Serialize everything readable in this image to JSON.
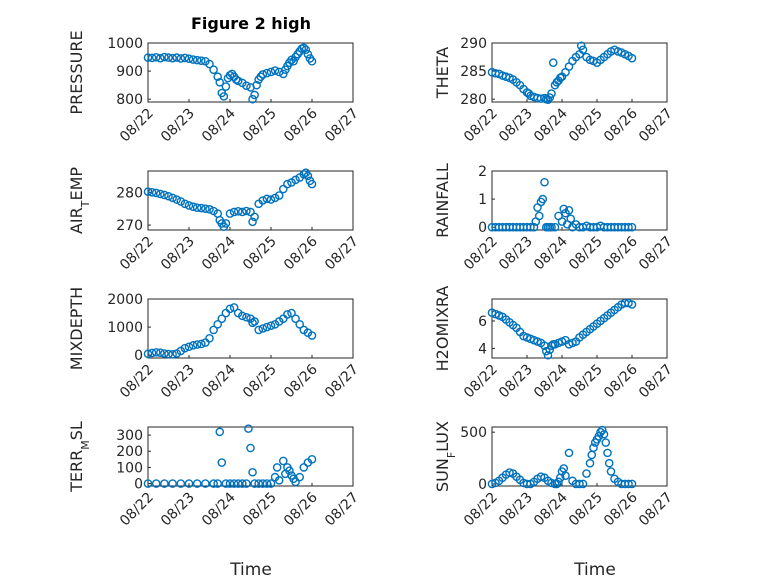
{
  "figure": {
    "title": "Figure 2 high",
    "xlabel": "Time",
    "marker_color": "#0072BD",
    "x_tick_labels": [
      "08/22",
      "08/23",
      "08/24",
      "08/25",
      "08/26",
      "08/27"
    ]
  },
  "chart_data": [
    {
      "type": "scatter",
      "ylabel": "PRESSURE",
      "ylim": [
        790,
        1000
      ],
      "yticks": [
        800,
        900,
        1000
      ],
      "grid": "on",
      "x": [
        0,
        0.1,
        0.2,
        0.3,
        0.4,
        0.5,
        0.6,
        0.7,
        0.8,
        0.9,
        1.0,
        1.1,
        1.2,
        1.3,
        1.4,
        1.5,
        1.6,
        1.7,
        1.75,
        1.8,
        1.85,
        1.9,
        1.95,
        2.0,
        2.05,
        2.1,
        2.15,
        2.2,
        2.3,
        2.4,
        2.5,
        2.55,
        2.6,
        2.65,
        2.7,
        2.75,
        2.8,
        2.9,
        3.0,
        3.1,
        3.2,
        3.3,
        3.35,
        3.4,
        3.45,
        3.5,
        3.55,
        3.6,
        3.65,
        3.7,
        3.75,
        3.8,
        3.85,
        3.9,
        3.95,
        4.0
      ],
      "y": [
        948,
        947,
        949,
        946,
        950,
        948,
        946,
        948,
        945,
        947,
        944,
        941,
        939,
        937,
        935,
        925,
        905,
        880,
        860,
        822,
        810,
        845,
        875,
        885,
        890,
        880,
        870,
        865,
        858,
        848,
        842,
        800,
        815,
        850,
        870,
        880,
        888,
        893,
        897,
        902,
        897,
        890,
        905,
        918,
        930,
        940,
        935,
        950,
        960,
        970,
        980,
        983,
        976,
        960,
        945,
        935
      ]
    },
    {
      "type": "scatter",
      "ylabel": "THETA",
      "ylim": [
        279.5,
        290
      ],
      "yticks": [
        280,
        285,
        290
      ],
      "grid": "on",
      "x": [
        0,
        0.1,
        0.2,
        0.3,
        0.4,
        0.5,
        0.6,
        0.7,
        0.8,
        0.9,
        1.0,
        1.05,
        1.1,
        1.2,
        1.3,
        1.4,
        1.5,
        1.55,
        1.6,
        1.65,
        1.7,
        1.75,
        1.8,
        1.85,
        1.9,
        1.95,
        2.0,
        2.1,
        2.2,
        2.3,
        2.4,
        2.5,
        2.55,
        2.6,
        2.7,
        2.8,
        2.9,
        3.0,
        3.1,
        3.2,
        3.3,
        3.4,
        3.5,
        3.6,
        3.7,
        3.8,
        3.9,
        4.0
      ],
      "y": [
        284.8,
        284.6,
        284.5,
        284.2,
        284.0,
        283.8,
        283.5,
        283.0,
        282.5,
        281.8,
        281.2,
        281.0,
        280.6,
        280.4,
        280.2,
        280.1,
        280.2,
        280.0,
        279.9,
        280.3,
        281.0,
        286.5,
        282.5,
        283.0,
        283.3,
        283.8,
        284.0,
        284.8,
        285.8,
        286.8,
        287.5,
        288.0,
        289.5,
        288.8,
        287.5,
        287.0,
        286.8,
        286.5,
        287.0,
        287.5,
        288.0,
        288.5,
        288.8,
        288.5,
        288.3,
        288.0,
        287.7,
        287.3
      ]
    },
    {
      "type": "scatter",
      "ylabel": "AIR_TEMP",
      "ylim": [
        268.5,
        286.5
      ],
      "yticks": [
        270,
        280
      ],
      "grid": "on",
      "x": [
        0,
        0.1,
        0.2,
        0.3,
        0.4,
        0.5,
        0.6,
        0.7,
        0.8,
        0.9,
        1.0,
        1.1,
        1.2,
        1.3,
        1.4,
        1.5,
        1.6,
        1.7,
        1.75,
        1.8,
        1.85,
        1.9,
        2.0,
        2.1,
        2.2,
        2.3,
        2.4,
        2.5,
        2.55,
        2.6,
        2.7,
        2.8,
        2.9,
        3.0,
        3.1,
        3.2,
        3.3,
        3.4,
        3.5,
        3.6,
        3.7,
        3.8,
        3.85,
        3.9,
        3.95,
        4.0
      ],
      "y": [
        280.2,
        280.0,
        279.8,
        279.5,
        279.2,
        278.8,
        278.3,
        277.8,
        277.2,
        276.5,
        276.0,
        275.6,
        275.3,
        275.2,
        275.0,
        274.8,
        274.3,
        273.5,
        271.5,
        270.5,
        269.5,
        270.5,
        273.5,
        274.0,
        274.2,
        274.0,
        274.3,
        274.0,
        271.0,
        272.5,
        276.5,
        277.5,
        278.0,
        277.8,
        278.3,
        279.0,
        281.0,
        282.5,
        283.0,
        283.8,
        284.5,
        285.5,
        286.0,
        285.0,
        283.5,
        282.5
      ]
    },
    {
      "type": "scatter",
      "ylabel": "RAINFALL",
      "ylim": [
        -0.1,
        2
      ],
      "yticks": [
        0,
        1,
        2
      ],
      "grid": "on",
      "x": [
        0,
        0.1,
        0.2,
        0.3,
        0.4,
        0.5,
        0.6,
        0.7,
        0.8,
        0.9,
        1.0,
        1.1,
        1.2,
        1.25,
        1.3,
        1.35,
        1.4,
        1.45,
        1.5,
        1.55,
        1.6,
        1.65,
        1.7,
        1.8,
        1.9,
        2.0,
        2.05,
        2.1,
        2.15,
        2.2,
        2.25,
        2.3,
        2.4,
        2.5,
        2.6,
        2.7,
        2.8,
        2.9,
        3.0,
        3.1,
        3.2,
        3.3,
        3.4,
        3.5,
        3.6,
        3.7,
        3.8,
        3.9,
        4.0
      ],
      "y": [
        0,
        0,
        0,
        0,
        0,
        0,
        0,
        0,
        0,
        0,
        0,
        0,
        0,
        0.2,
        0.7,
        0.4,
        0.9,
        1.0,
        1.6,
        0,
        0,
        0,
        0,
        0,
        0.4,
        0.2,
        0.65,
        0.5,
        0.1,
        0.6,
        0.3,
        0,
        0.1,
        0,
        0,
        0.05,
        0,
        0,
        0,
        0.05,
        0,
        0,
        0,
        0,
        0,
        0,
        0,
        0,
        0
      ]
    },
    {
      "type": "scatter",
      "ylabel": "MIXDEPTH",
      "ylim": [
        -100,
        2000
      ],
      "yticks": [
        0,
        1000,
        2000
      ],
      "grid": "on",
      "x": [
        0,
        0.1,
        0.2,
        0.3,
        0.4,
        0.5,
        0.6,
        0.7,
        0.8,
        0.9,
        1.0,
        1.1,
        1.2,
        1.3,
        1.4,
        1.5,
        1.6,
        1.7,
        1.8,
        1.9,
        2.0,
        2.1,
        2.2,
        2.3,
        2.4,
        2.5,
        2.55,
        2.6,
        2.7,
        2.8,
        2.9,
        3.0,
        3.1,
        3.2,
        3.3,
        3.4,
        3.5,
        3.6,
        3.7,
        3.8,
        3.9,
        4.0
      ],
      "y": [
        50,
        80,
        100,
        90,
        60,
        40,
        30,
        60,
        150,
        250,
        300,
        350,
        380,
        400,
        450,
        600,
        900,
        1100,
        1300,
        1500,
        1650,
        1700,
        1500,
        1400,
        1350,
        1300,
        1150,
        1200,
        900,
        950,
        1000,
        1050,
        1100,
        1200,
        1300,
        1450,
        1500,
        1300,
        1100,
        900,
        800,
        700
      ]
    },
    {
      "type": "scatter",
      "ylabel": "H2OMIXRA",
      "ylim": [
        3.3,
        7.6
      ],
      "yticks": [
        4,
        6
      ],
      "grid": "on",
      "x": [
        0,
        0.1,
        0.2,
        0.3,
        0.4,
        0.5,
        0.6,
        0.7,
        0.8,
        0.9,
        1.0,
        1.1,
        1.2,
        1.3,
        1.4,
        1.5,
        1.55,
        1.6,
        1.65,
        1.7,
        1.75,
        1.8,
        1.9,
        2.0,
        2.1,
        2.2,
        2.3,
        2.4,
        2.5,
        2.6,
        2.7,
        2.8,
        2.9,
        3.0,
        3.1,
        3.2,
        3.3,
        3.4,
        3.5,
        3.6,
        3.7,
        3.8,
        3.9,
        4.0
      ],
      "y": [
        6.6,
        6.5,
        6.4,
        6.3,
        6.1,
        5.9,
        5.7,
        5.5,
        5.2,
        4.9,
        4.8,
        4.7,
        4.6,
        4.5,
        4.4,
        4.2,
        3.8,
        3.5,
        3.9,
        4.2,
        4.3,
        4.3,
        4.4,
        4.5,
        4.6,
        4.3,
        4.4,
        4.5,
        4.8,
        5.0,
        5.2,
        5.4,
        5.6,
        5.8,
        6.0,
        6.2,
        6.4,
        6.6,
        6.8,
        7.0,
        7.2,
        7.3,
        7.3,
        7.2
      ]
    },
    {
      "type": "scatter",
      "ylabel": "TERR_MSL",
      "ylim": [
        -15,
        350
      ],
      "yticks": [
        0,
        100,
        200,
        300
      ],
      "grid": "on",
      "x": [
        0,
        0.2,
        0.4,
        0.6,
        0.8,
        1.0,
        1.2,
        1.4,
        1.6,
        1.7,
        1.75,
        1.8,
        1.9,
        2.0,
        2.1,
        2.2,
        2.3,
        2.4,
        2.45,
        2.5,
        2.55,
        2.6,
        2.7,
        2.8,
        2.9,
        3.0,
        3.1,
        3.15,
        3.2,
        3.3,
        3.35,
        3.4,
        3.45,
        3.5,
        3.55,
        3.6,
        3.7,
        3.8,
        3.9,
        4.0
      ],
      "y": [
        0,
        0,
        0,
        0,
        0,
        0,
        0,
        0,
        0,
        0,
        320,
        130,
        0,
        0,
        0,
        0,
        0,
        0,
        340,
        220,
        70,
        0,
        0,
        0,
        0,
        0,
        40,
        100,
        20,
        140,
        60,
        100,
        80,
        50,
        30,
        10,
        40,
        100,
        130,
        150
      ]
    },
    {
      "type": "scatter",
      "ylabel": "SUN_FLUX",
      "ylim": [
        -20,
        550
      ],
      "yticks": [
        0,
        500
      ],
      "grid": "on",
      "x": [
        0,
        0.1,
        0.2,
        0.3,
        0.4,
        0.5,
        0.6,
        0.7,
        0.8,
        0.9,
        1.0,
        1.1,
        1.2,
        1.3,
        1.4,
        1.5,
        1.6,
        1.7,
        1.8,
        1.85,
        1.9,
        1.95,
        2.0,
        2.05,
        2.1,
        2.2,
        2.3,
        2.4,
        2.5,
        2.6,
        2.7,
        2.8,
        2.85,
        2.9,
        2.95,
        3.0,
        3.05,
        3.1,
        3.15,
        3.2,
        3.25,
        3.3,
        3.35,
        3.4,
        3.5,
        3.6,
        3.7,
        3.8,
        3.9,
        4.0
      ],
      "y": [
        0,
        10,
        30,
        60,
        90,
        110,
        100,
        70,
        40,
        10,
        0,
        0,
        20,
        50,
        70,
        60,
        30,
        10,
        0,
        0,
        20,
        60,
        120,
        150,
        80,
        300,
        30,
        0,
        0,
        0,
        100,
        200,
        280,
        350,
        400,
        430,
        460,
        500,
        520,
        480,
        400,
        300,
        200,
        120,
        50,
        20,
        0,
        0,
        0,
        0
      ]
    }
  ]
}
